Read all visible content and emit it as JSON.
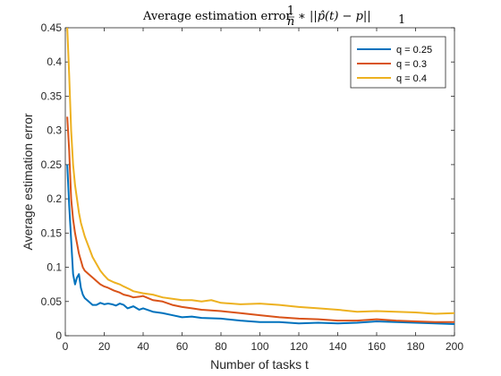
{
  "chart_data": {
    "type": "line",
    "title_main": "Average estimation error",
    "title_formula": {
      "frac_num": "1",
      "frac_den": "n",
      "expr": "∗ ||p̂(t) − p||",
      "sub": "1"
    },
    "xlabel": "Number of tasks t",
    "ylabel": "Average estimation error",
    "xlim": [
      0,
      200
    ],
    "ylim": [
      0,
      0.45
    ],
    "xticks": [
      0,
      20,
      40,
      60,
      80,
      100,
      120,
      140,
      160,
      180,
      200
    ],
    "yticks": [
      0,
      0.05,
      0.1,
      0.15,
      0.2,
      0.25,
      0.3,
      0.35,
      0.4,
      0.45
    ],
    "ytick_labels": [
      "0",
      "0.05",
      "0.1",
      "0.15",
      "0.2",
      "0.25",
      "0.3",
      "0.35",
      "0.4",
      "0.45"
    ],
    "grid": false,
    "legend_position": "top-right",
    "series": [
      {
        "name": "q = 0.25",
        "color": "#0072BD",
        "x": [
          1,
          2,
          3,
          4,
          5,
          6,
          7,
          8,
          9,
          10,
          12,
          14,
          16,
          18,
          20,
          22,
          24,
          26,
          28,
          30,
          32,
          35,
          38,
          40,
          45,
          50,
          55,
          60,
          65,
          70,
          80,
          90,
          100,
          110,
          120,
          130,
          140,
          150,
          160,
          170,
          180,
          190,
          200
        ],
        "y": [
          0.25,
          0.19,
          0.14,
          0.09,
          0.075,
          0.085,
          0.09,
          0.07,
          0.06,
          0.055,
          0.05,
          0.045,
          0.045,
          0.048,
          0.046,
          0.047,
          0.046,
          0.044,
          0.047,
          0.045,
          0.04,
          0.043,
          0.038,
          0.04,
          0.035,
          0.033,
          0.03,
          0.027,
          0.028,
          0.026,
          0.025,
          0.022,
          0.02,
          0.02,
          0.018,
          0.019,
          0.018,
          0.019,
          0.021,
          0.02,
          0.019,
          0.018,
          0.017
        ]
      },
      {
        "name": "q = 0.3",
        "color": "#D95319",
        "x": [
          1,
          2,
          3,
          4,
          5,
          6,
          7,
          8,
          9,
          10,
          12,
          14,
          16,
          18,
          20,
          22,
          25,
          28,
          30,
          33,
          35,
          38,
          40,
          45,
          50,
          55,
          60,
          65,
          70,
          80,
          90,
          100,
          110,
          120,
          130,
          140,
          150,
          160,
          170,
          180,
          190,
          200
        ],
        "y": [
          0.32,
          0.27,
          0.2,
          0.17,
          0.15,
          0.135,
          0.12,
          0.11,
          0.1,
          0.095,
          0.09,
          0.085,
          0.08,
          0.075,
          0.072,
          0.07,
          0.066,
          0.063,
          0.06,
          0.058,
          0.056,
          0.057,
          0.058,
          0.052,
          0.05,
          0.045,
          0.042,
          0.04,
          0.038,
          0.036,
          0.033,
          0.03,
          0.027,
          0.025,
          0.024,
          0.022,
          0.022,
          0.024,
          0.022,
          0.021,
          0.02,
          0.02
        ]
      },
      {
        "name": "q = 0.4",
        "color": "#EDB120",
        "x": [
          1,
          2,
          3,
          4,
          5,
          6,
          7,
          8,
          9,
          10,
          12,
          14,
          16,
          18,
          20,
          22,
          25,
          28,
          30,
          33,
          35,
          40,
          45,
          50,
          55,
          60,
          65,
          70,
          75,
          80,
          90,
          100,
          110,
          120,
          130,
          140,
          150,
          160,
          170,
          180,
          190,
          200
        ],
        "y": [
          0.45,
          0.38,
          0.3,
          0.25,
          0.22,
          0.2,
          0.18,
          0.165,
          0.155,
          0.145,
          0.13,
          0.115,
          0.105,
          0.095,
          0.088,
          0.082,
          0.078,
          0.075,
          0.072,
          0.068,
          0.065,
          0.062,
          0.06,
          0.056,
          0.054,
          0.052,
          0.052,
          0.05,
          0.052,
          0.048,
          0.046,
          0.047,
          0.045,
          0.042,
          0.04,
          0.038,
          0.035,
          0.036,
          0.035,
          0.034,
          0.032,
          0.033
        ]
      }
    ]
  }
}
